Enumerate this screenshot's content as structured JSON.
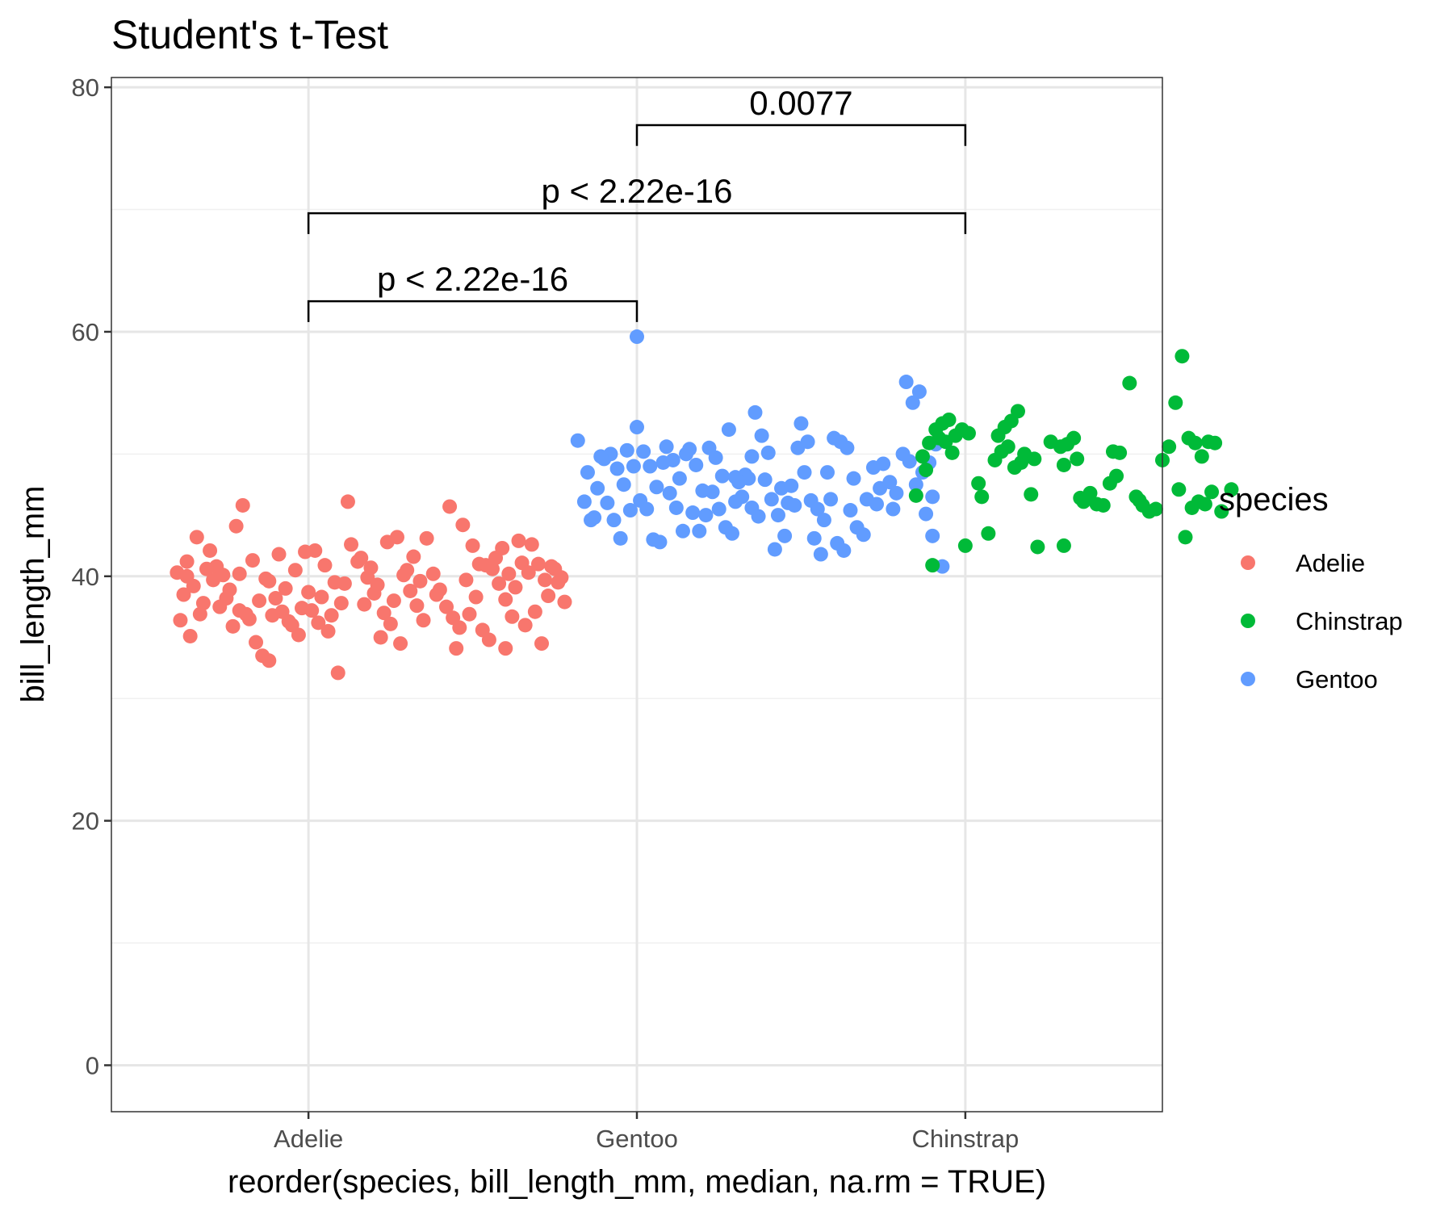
{
  "chart_data": {
    "type": "scatter",
    "title": "Student's t-Test",
    "xlabel": "reorder(species, bill_length_mm, median, na.rm = TRUE)",
    "ylabel": "bill_length_mm",
    "categories": [
      "Adelie",
      "Gentoo",
      "Chinstrap"
    ],
    "ylim": [
      -3.8,
      80.8
    ],
    "yticks": [
      0,
      20,
      40,
      60,
      80
    ],
    "grid": true,
    "legend": {
      "title": "species",
      "position": "right",
      "entries": [
        {
          "label": "Adelie",
          "color": "#F8766D"
        },
        {
          "label": "Chinstrap",
          "color": "#00BA38"
        },
        {
          "label": "Gentoo",
          "color": "#619CFF"
        }
      ]
    },
    "colors": {
      "Adelie": "#F8766D",
      "Gentoo": "#619CFF",
      "Chinstrap": "#00BA38"
    },
    "series": [
      {
        "name": "Adelie",
        "points": [
          [
            0.6,
            40.3
          ],
          [
            0.63,
            41.2
          ],
          [
            0.66,
            43.2
          ],
          [
            0.7,
            42.1
          ],
          [
            0.72,
            40.8
          ],
          [
            0.62,
            38.5
          ],
          [
            0.65,
            39.2
          ],
          [
            0.68,
            37.8
          ],
          [
            0.61,
            36.4
          ],
          [
            0.64,
            35.1
          ],
          [
            0.74,
            40.1
          ],
          [
            0.78,
            44.1
          ],
          [
            0.8,
            45.8
          ],
          [
            0.76,
            38.9
          ],
          [
            0.79,
            37.2
          ],
          [
            0.82,
            36.5
          ],
          [
            0.77,
            35.9
          ],
          [
            0.84,
            34.6
          ],
          [
            0.86,
            33.5
          ],
          [
            0.88,
            33.1
          ],
          [
            0.83,
            41.3
          ],
          [
            0.87,
            39.8
          ],
          [
            0.9,
            38.2
          ],
          [
            0.92,
            37.1
          ],
          [
            0.95,
            36.0
          ],
          [
            0.97,
            35.2
          ],
          [
            0.93,
            39.0
          ],
          [
            0.96,
            40.5
          ],
          [
            0.99,
            42.0
          ],
          [
            0.91,
            41.8
          ],
          [
            1.02,
            42.1
          ],
          [
            1.05,
            40.9
          ],
          [
            1.08,
            39.5
          ],
          [
            1.1,
            37.8
          ],
          [
            1.03,
            36.2
          ],
          [
            1.06,
            35.5
          ],
          [
            1.0,
            38.7
          ],
          [
            0.98,
            37.4
          ],
          [
            0.85,
            38.0
          ],
          [
            0.89,
            36.8
          ],
          [
            0.73,
            37.5
          ],
          [
            0.71,
            39.7
          ],
          [
            0.69,
            40.6
          ],
          [
            0.67,
            36.9
          ],
          [
            0.75,
            38.2
          ],
          [
            1.13,
            42.6
          ],
          [
            1.15,
            41.2
          ],
          [
            1.18,
            39.9
          ],
          [
            1.2,
            38.6
          ],
          [
            1.23,
            37.0
          ],
          [
            1.25,
            36.1
          ],
          [
            1.22,
            35.0
          ],
          [
            1.12,
            46.1
          ],
          [
            1.16,
            41.5
          ],
          [
            1.19,
            40.7
          ],
          [
            1.21,
            39.3
          ],
          [
            1.24,
            42.8
          ],
          [
            1.27,
            43.2
          ],
          [
            1.29,
            40.1
          ],
          [
            1.31,
            38.8
          ],
          [
            1.33,
            37.6
          ],
          [
            1.35,
            36.4
          ],
          [
            1.28,
            34.5
          ],
          [
            1.32,
            41.6
          ],
          [
            1.36,
            43.1
          ],
          [
            1.38,
            40.2
          ],
          [
            1.4,
            38.9
          ],
          [
            1.42,
            37.5
          ],
          [
            1.44,
            36.6
          ],
          [
            1.46,
            35.8
          ],
          [
            1.43,
            45.7
          ],
          [
            1.47,
            44.2
          ],
          [
            1.5,
            42.5
          ],
          [
            1.52,
            41.0
          ],
          [
            1.48,
            39.7
          ],
          [
            1.51,
            38.3
          ],
          [
            1.49,
            36.9
          ],
          [
            1.53,
            35.6
          ],
          [
            1.55,
            34.8
          ],
          [
            1.45,
            34.1
          ],
          [
            1.56,
            40.6
          ],
          [
            1.58,
            39.4
          ],
          [
            1.6,
            38.1
          ],
          [
            1.62,
            36.7
          ],
          [
            1.57,
            41.5
          ],
          [
            1.59,
            42.3
          ],
          [
            1.54,
            40.9
          ],
          [
            1.61,
            40.2
          ],
          [
            1.63,
            39.1
          ],
          [
            1.65,
            41.1
          ],
          [
            1.67,
            40.3
          ],
          [
            1.64,
            42.9
          ],
          [
            1.68,
            42.6
          ],
          [
            1.7,
            41.0
          ],
          [
            1.72,
            39.7
          ],
          [
            1.74,
            40.8
          ],
          [
            1.76,
            39.5
          ],
          [
            1.78,
            37.9
          ],
          [
            1.73,
            38.4
          ],
          [
            1.69,
            37.1
          ],
          [
            1.66,
            36.0
          ],
          [
            1.71,
            34.5
          ],
          [
            1.75,
            40.6
          ],
          [
            1.77,
            39.9
          ],
          [
            1.6,
            34.1
          ],
          [
            1.39,
            38.5
          ],
          [
            1.34,
            39.6
          ],
          [
            1.3,
            40.5
          ],
          [
            1.26,
            38.0
          ],
          [
            1.17,
            37.7
          ],
          [
            1.11,
            39.4
          ],
          [
            1.07,
            36.8
          ],
          [
            1.04,
            38.3
          ],
          [
            1.01,
            37.2
          ],
          [
            0.94,
            36.3
          ],
          [
            0.81,
            36.9
          ],
          [
            0.88,
            39.6
          ],
          [
            0.79,
            40.2
          ],
          [
            0.63,
            40.0
          ],
          [
            1.09,
            32.1
          ]
        ]
      },
      {
        "name": "Gentoo",
        "points": [
          [
            1.82,
            51.1
          ],
          [
            1.85,
            48.5
          ],
          [
            1.88,
            47.2
          ],
          [
            1.84,
            46.1
          ],
          [
            1.87,
            44.8
          ],
          [
            1.9,
            49.6
          ],
          [
            1.92,
            50.0
          ],
          [
            1.94,
            48.8
          ],
          [
            1.96,
            47.5
          ],
          [
            1.91,
            46.0
          ],
          [
            1.93,
            44.6
          ],
          [
            1.98,
            45.4
          ],
          [
            2.0,
            52.2
          ],
          [
            2.02,
            50.2
          ],
          [
            2.04,
            49.0
          ],
          [
            2.06,
            47.3
          ],
          [
            2.01,
            46.2
          ],
          [
            2.03,
            45.5
          ],
          [
            2.05,
            43.0
          ],
          [
            2.07,
            42.8
          ],
          [
            2.09,
            50.6
          ],
          [
            2.11,
            49.5
          ],
          [
            2.13,
            48.0
          ],
          [
            2.1,
            46.8
          ],
          [
            2.12,
            45.6
          ],
          [
            2.14,
            43.7
          ],
          [
            2.16,
            50.4
          ],
          [
            2.18,
            49.1
          ],
          [
            2.2,
            47.0
          ],
          [
            2.17,
            45.2
          ],
          [
            2.19,
            43.7
          ],
          [
            2.22,
            50.5
          ],
          [
            2.24,
            49.7
          ],
          [
            2.26,
            48.2
          ],
          [
            2.23,
            46.9
          ],
          [
            2.25,
            45.5
          ],
          [
            2.27,
            44.0
          ],
          [
            2.29,
            43.5
          ],
          [
            2.28,
            52.0
          ],
          [
            2.3,
            48.1
          ],
          [
            2.32,
            46.5
          ],
          [
            2.34,
            48.0
          ],
          [
            2.36,
            53.4
          ],
          [
            2.38,
            51.5
          ],
          [
            2.4,
            50.1
          ],
          [
            2.35,
            45.6
          ],
          [
            2.37,
            44.9
          ],
          [
            2.39,
            47.9
          ],
          [
            2.41,
            46.3
          ],
          [
            2.43,
            45.0
          ],
          [
            2.45,
            43.3
          ],
          [
            2.42,
            42.2
          ],
          [
            2.44,
            47.2
          ],
          [
            2.46,
            46.0
          ],
          [
            2.48,
            45.8
          ],
          [
            2.5,
            52.5
          ],
          [
            2.52,
            51.0
          ],
          [
            2.49,
            50.5
          ],
          [
            2.51,
            48.5
          ],
          [
            2.53,
            46.2
          ],
          [
            2.55,
            45.5
          ],
          [
            2.57,
            44.6
          ],
          [
            2.54,
            43.1
          ],
          [
            2.56,
            41.8
          ],
          [
            2.59,
            46.3
          ],
          [
            2.62,
            51.0
          ],
          [
            2.64,
            50.5
          ],
          [
            2.66,
            48.0
          ],
          [
            2.61,
            42.7
          ],
          [
            2.63,
            42.1
          ],
          [
            2.65,
            45.4
          ],
          [
            2.67,
            44.0
          ],
          [
            2.69,
            43.4
          ],
          [
            2.7,
            46.3
          ],
          [
            2.72,
            48.9
          ],
          [
            2.74,
            47.2
          ],
          [
            2.73,
            45.9
          ],
          [
            2.75,
            49.2
          ],
          [
            2.77,
            47.7
          ],
          [
            2.79,
            46.8
          ],
          [
            2.82,
            55.9
          ],
          [
            2.84,
            54.2
          ],
          [
            2.86,
            55.1
          ],
          [
            2.81,
            50.0
          ],
          [
            2.83,
            49.4
          ],
          [
            2.85,
            47.5
          ],
          [
            2.87,
            48.5
          ],
          [
            2.89,
            49.3
          ],
          [
            2.88,
            45.1
          ],
          [
            2.9,
            46.5
          ],
          [
            2.91,
            50.8
          ],
          [
            2.93,
            40.8
          ],
          [
            2.9,
            43.3
          ],
          [
            2.33,
            48.3
          ],
          [
            2.31,
            47.7
          ],
          [
            1.95,
            43.1
          ],
          [
            1.97,
            50.3
          ],
          [
            2.08,
            49.3
          ],
          [
            2.21,
            45.0
          ],
          [
            2.47,
            47.4
          ],
          [
            2.58,
            48.5
          ],
          [
            2.15,
            50.0
          ],
          [
            1.89,
            49.8
          ],
          [
            2.35,
            49.8
          ],
          [
            2.6,
            51.3
          ],
          [
            2.78,
            45.5
          ],
          [
            1.86,
            44.6
          ],
          [
            1.99,
            49.0
          ],
          [
            2.3,
            46.1
          ],
          [
            2.0,
            59.6
          ]
        ]
      },
      {
        "name": "Chinstrap",
        "points": [
          [
            2.85,
            46.6
          ],
          [
            2.87,
            49.8
          ],
          [
            2.89,
            50.9
          ],
          [
            2.91,
            52.0
          ],
          [
            2.93,
            52.5
          ],
          [
            2.95,
            52.8
          ],
          [
            2.92,
            51.3
          ],
          [
            2.94,
            51.0
          ],
          [
            2.97,
            51.5
          ],
          [
            2.99,
            52.0
          ],
          [
            3.01,
            51.7
          ],
          [
            2.96,
            50.1
          ],
          [
            2.88,
            48.7
          ],
          [
            2.9,
            40.9
          ],
          [
            3.04,
            47.6
          ],
          [
            3.05,
            46.5
          ],
          [
            3.07,
            43.5
          ],
          [
            3.0,
            42.5
          ],
          [
            3.09,
            49.5
          ],
          [
            3.11,
            50.2
          ],
          [
            3.13,
            50.6
          ],
          [
            3.1,
            51.5
          ],
          [
            3.12,
            52.2
          ],
          [
            3.14,
            52.7
          ],
          [
            3.16,
            53.5
          ],
          [
            3.17,
            49.3
          ],
          [
            3.15,
            48.9
          ],
          [
            3.18,
            50.0
          ],
          [
            3.2,
            46.7
          ],
          [
            3.22,
            42.4
          ],
          [
            3.26,
            51.0
          ],
          [
            3.29,
            50.6
          ],
          [
            3.31,
            50.8
          ],
          [
            3.33,
            51.3
          ],
          [
            3.3,
            49.1
          ],
          [
            3.34,
            49.6
          ],
          [
            3.3,
            42.5
          ],
          [
            3.36,
            46.1
          ],
          [
            3.38,
            46.8
          ],
          [
            3.4,
            45.9
          ],
          [
            3.42,
            45.8
          ],
          [
            3.44,
            47.6
          ],
          [
            3.46,
            48.2
          ],
          [
            3.45,
            50.2
          ],
          [
            3.47,
            50.1
          ],
          [
            3.5,
            55.8
          ],
          [
            3.52,
            46.5
          ],
          [
            3.54,
            45.8
          ],
          [
            3.56,
            45.3
          ],
          [
            3.58,
            45.5
          ],
          [
            3.6,
            49.5
          ],
          [
            3.62,
            50.6
          ],
          [
            3.64,
            54.2
          ],
          [
            3.66,
            58.0
          ],
          [
            3.65,
            47.1
          ],
          [
            3.68,
            51.3
          ],
          [
            3.7,
            50.9
          ],
          [
            3.72,
            49.8
          ],
          [
            3.74,
            51.0
          ],
          [
            3.76,
            50.9
          ],
          [
            3.67,
            43.2
          ],
          [
            3.71,
            46.1
          ],
          [
            3.73,
            45.9
          ],
          [
            3.75,
            46.9
          ],
          [
            3.78,
            45.3
          ],
          [
            3.81,
            47.1
          ],
          [
            3.69,
            45.6
          ],
          [
            3.53,
            46.2
          ],
          [
            3.35,
            46.4
          ],
          [
            3.21,
            49.6
          ]
        ]
      }
    ],
    "annotations": [
      {
        "label": "p < 2.22e-16",
        "from": "Adelie",
        "to": "Gentoo",
        "y": 62.5,
        "tip_bottom": 60.8
      },
      {
        "label": "p < 2.22e-16",
        "from": "Adelie",
        "to": "Chinstrap",
        "y": 69.7,
        "tip_bottom": 68.0
      },
      {
        "label": "0.0077",
        "from": "Gentoo",
        "to": "Chinstrap",
        "y": 76.9,
        "tip_bottom": 75.2
      }
    ]
  }
}
